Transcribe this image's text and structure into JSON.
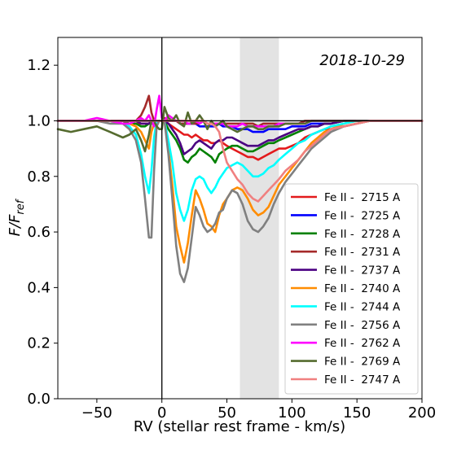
{
  "chart_data": {
    "type": "line",
    "annotation": "2018-10-29",
    "xlabel": "RV (stellar rest frame - km/s)",
    "ylabel_main": "F/F",
    "ylabel_sub": "ref",
    "xlim": [
      -80,
      200
    ],
    "ylim": [
      0,
      1.3
    ],
    "xticks": [
      -50,
      0,
      50,
      100,
      150,
      200
    ],
    "yticks": [
      0.0,
      0.2,
      0.4,
      0.6,
      0.8,
      1.0,
      1.2
    ],
    "shaded_region": [
      60,
      90
    ],
    "shaded_color": "#e3e3e3",
    "hline_y": 1.0,
    "vline_x": 0,
    "legend_position": "lower right",
    "x": [
      -80,
      -70,
      -60,
      -50,
      -40,
      -30,
      -25,
      -20,
      -16,
      -13,
      -10,
      -8,
      -6,
      -4,
      -2,
      0,
      2,
      5,
      8,
      11,
      14,
      17,
      20,
      23,
      26,
      29,
      32,
      35,
      38,
      41,
      44,
      47,
      50,
      54,
      58,
      62,
      66,
      70,
      74,
      78,
      82,
      86,
      90,
      95,
      100,
      105,
      110,
      115,
      120,
      125,
      130,
      140,
      150,
      160,
      170,
      180,
      190,
      200
    ],
    "series": [
      {
        "name": "Fe II -  2715 A",
        "color": "#e31a1c",
        "values": [
          1.0,
          1.0,
          1.0,
          1.0,
          1.0,
          1.0,
          0.99,
          0.99,
          0.99,
          0.99,
          0.99,
          1.0,
          1.0,
          0.99,
          1.0,
          1.0,
          1.0,
          0.99,
          0.98,
          0.97,
          0.96,
          0.95,
          0.95,
          0.94,
          0.95,
          0.94,
          0.93,
          0.93,
          0.92,
          0.92,
          0.93,
          0.92,
          0.91,
          0.9,
          0.89,
          0.88,
          0.87,
          0.87,
          0.86,
          0.87,
          0.88,
          0.89,
          0.9,
          0.9,
          0.91,
          0.92,
          0.94,
          0.95,
          0.96,
          0.97,
          0.97,
          0.98,
          0.99,
          1.0,
          1.0,
          1.0,
          1.0,
          1.0
        ]
      },
      {
        "name": "Fe II -  2725 A",
        "color": "#0000ff",
        "values": [
          1.0,
          1.0,
          1.0,
          1.0,
          1.0,
          1.0,
          1.0,
          1.0,
          1.0,
          1.0,
          1.0,
          1.0,
          1.0,
          1.0,
          1.0,
          1.0,
          1.0,
          1.0,
          1.0,
          1.0,
          0.99,
          0.99,
          0.99,
          0.99,
          0.99,
          0.98,
          0.98,
          0.98,
          0.98,
          0.98,
          0.99,
          0.98,
          0.98,
          0.98,
          0.97,
          0.97,
          0.97,
          0.96,
          0.96,
          0.96,
          0.97,
          0.97,
          0.97,
          0.97,
          0.98,
          0.98,
          0.98,
          0.99,
          0.99,
          0.99,
          0.99,
          1.0,
          1.0,
          1.0,
          1.0,
          1.0,
          1.0,
          1.0
        ]
      },
      {
        "name": "Fe II -  2728 A",
        "color": "#008000",
        "values": [
          1.0,
          1.0,
          1.0,
          1.0,
          1.0,
          1.0,
          0.99,
          0.99,
          0.98,
          0.98,
          0.99,
          0.99,
          0.99,
          0.99,
          1.0,
          1.0,
          1.0,
          0.97,
          0.95,
          0.93,
          0.9,
          0.86,
          0.85,
          0.87,
          0.88,
          0.9,
          0.89,
          0.88,
          0.87,
          0.85,
          0.88,
          0.89,
          0.9,
          0.91,
          0.91,
          0.9,
          0.89,
          0.89,
          0.9,
          0.91,
          0.92,
          0.92,
          0.93,
          0.94,
          0.95,
          0.96,
          0.97,
          0.98,
          0.98,
          0.99,
          0.99,
          1.0,
          1.0,
          1.0,
          1.0,
          1.0,
          1.0,
          1.0
        ]
      },
      {
        "name": "Fe II -  2731 A",
        "color": "#a52a2a",
        "values": [
          1.0,
          1.0,
          1.0,
          1.0,
          1.0,
          1.0,
          1.0,
          1.0,
          1.02,
          1.05,
          1.09,
          1.03,
          1.0,
          1.0,
          1.0,
          1.0,
          1.01,
          1.0,
          1.0,
          1.0,
          0.99,
          0.99,
          0.99,
          0.99,
          0.99,
          0.99,
          1.0,
          0.99,
          0.99,
          0.99,
          0.99,
          0.99,
          0.99,
          0.99,
          0.99,
          0.99,
          0.99,
          0.99,
          0.98,
          0.99,
          0.99,
          0.99,
          0.99,
          0.99,
          0.99,
          0.99,
          1.0,
          1.0,
          1.0,
          1.0,
          1.0,
          1.0,
          1.0,
          1.0,
          1.0,
          1.0,
          1.0,
          1.0
        ]
      },
      {
        "name": "Fe II -  2737 A",
        "color": "#4b0082",
        "values": [
          1.0,
          1.0,
          1.0,
          1.0,
          1.0,
          1.0,
          1.0,
          1.0,
          0.99,
          0.99,
          0.99,
          1.0,
          1.0,
          1.0,
          1.0,
          1.0,
          1.0,
          0.99,
          0.97,
          0.95,
          0.92,
          0.88,
          0.89,
          0.9,
          0.92,
          0.93,
          0.92,
          0.91,
          0.9,
          0.92,
          0.93,
          0.93,
          0.94,
          0.94,
          0.93,
          0.92,
          0.91,
          0.91,
          0.91,
          0.92,
          0.93,
          0.93,
          0.94,
          0.95,
          0.96,
          0.97,
          0.97,
          0.98,
          0.98,
          0.99,
          0.99,
          1.0,
          1.0,
          1.0,
          1.0,
          1.0,
          1.0,
          1.0
        ]
      },
      {
        "name": "Fe II -  2740 A",
        "color": "#ff8c00",
        "values": [
          1.0,
          1.0,
          1.0,
          1.0,
          1.0,
          0.99,
          0.99,
          0.98,
          0.96,
          0.93,
          0.9,
          0.96,
          0.99,
          1.0,
          1.0,
          1.0,
          1.0,
          0.9,
          0.77,
          0.62,
          0.55,
          0.49,
          0.56,
          0.66,
          0.75,
          0.72,
          0.68,
          0.63,
          0.62,
          0.6,
          0.66,
          0.7,
          0.72,
          0.75,
          0.76,
          0.75,
          0.72,
          0.68,
          0.66,
          0.67,
          0.69,
          0.73,
          0.77,
          0.8,
          0.83,
          0.86,
          0.89,
          0.92,
          0.94,
          0.96,
          0.97,
          0.99,
          1.0,
          1.0,
          1.0,
          1.0,
          1.0,
          1.0
        ]
      },
      {
        "name": "Fe II -  2744 A",
        "color": "#00ffff",
        "values": [
          1.0,
          1.0,
          1.0,
          1.0,
          1.0,
          0.99,
          0.98,
          0.95,
          0.88,
          0.8,
          0.74,
          0.82,
          0.94,
          1.0,
          1.0,
          1.0,
          1.0,
          0.93,
          0.85,
          0.74,
          0.68,
          0.64,
          0.68,
          0.75,
          0.79,
          0.8,
          0.79,
          0.76,
          0.74,
          0.76,
          0.79,
          0.81,
          0.83,
          0.84,
          0.85,
          0.84,
          0.82,
          0.8,
          0.8,
          0.81,
          0.83,
          0.84,
          0.86,
          0.88,
          0.9,
          0.92,
          0.93,
          0.95,
          0.96,
          0.97,
          0.98,
          0.99,
          1.0,
          1.0,
          1.0,
          1.0,
          1.0,
          1.0
        ]
      },
      {
        "name": "Fe II -  2756 A",
        "color": "#808080",
        "values": [
          1.0,
          1.0,
          1.0,
          1.0,
          0.99,
          0.99,
          0.97,
          0.93,
          0.85,
          0.72,
          0.58,
          0.58,
          0.82,
          0.98,
          1.0,
          1.0,
          1.0,
          0.88,
          0.72,
          0.55,
          0.45,
          0.42,
          0.47,
          0.58,
          0.69,
          0.66,
          0.62,
          0.6,
          0.61,
          0.63,
          0.67,
          0.68,
          0.72,
          0.75,
          0.74,
          0.7,
          0.64,
          0.61,
          0.6,
          0.62,
          0.65,
          0.7,
          0.74,
          0.78,
          0.81,
          0.84,
          0.87,
          0.9,
          0.92,
          0.94,
          0.96,
          0.98,
          0.99,
          1.0,
          1.0,
          1.0,
          1.0,
          1.0
        ]
      },
      {
        "name": "Fe II -  2762 A",
        "color": "#ff00ff",
        "values": [
          1.0,
          1.0,
          1.0,
          1.01,
          1.0,
          0.99,
          0.99,
          1.0,
          1.01,
          1.0,
          1.02,
          1.0,
          0.98,
          1.04,
          1.09,
          1.01,
          1.0,
          1.02,
          1.01,
          1.0,
          1.0,
          1.0,
          0.99,
          0.99,
          1.0,
          0.99,
          1.0,
          0.99,
          0.99,
          0.99,
          0.99,
          0.99,
          0.98,
          0.98,
          0.98,
          0.99,
          0.98,
          0.98,
          0.98,
          0.98,
          0.98,
          0.98,
          0.99,
          0.99,
          0.99,
          0.99,
          0.99,
          1.0,
          1.0,
          1.0,
          1.0,
          1.0,
          1.0,
          1.0,
          1.0,
          1.0,
          1.0,
          1.0
        ]
      },
      {
        "name": "Fe II -  2769 A",
        "color": "#556b2f",
        "values": [
          0.97,
          0.96,
          0.97,
          0.98,
          0.96,
          0.94,
          0.95,
          0.97,
          0.93,
          0.89,
          0.95,
          1.0,
          1.0,
          0.98,
          0.97,
          0.97,
          1.05,
          1.01,
          1.0,
          1.02,
          0.99,
          0.98,
          1.03,
          0.99,
          1.0,
          1.02,
          1.0,
          0.97,
          1.0,
          0.98,
          0.99,
          1.0,
          0.98,
          0.97,
          0.96,
          0.97,
          0.98,
          0.98,
          0.97,
          0.97,
          0.98,
          0.98,
          0.98,
          0.99,
          0.99,
          0.99,
          0.99,
          1.0,
          1.0,
          1.0,
          1.0,
          1.0,
          1.0,
          1.0,
          1.0,
          1.0,
          1.0,
          1.0
        ]
      },
      {
        "name": "Fe II -  2747 A",
        "color": "#f08080",
        "values": [
          1.0,
          1.0,
          1.0,
          1.0,
          1.0,
          1.0,
          1.0,
          1.0,
          1.0,
          1.0,
          1.0,
          1.0,
          1.0,
          1.0,
          1.0,
          1.0,
          1.0,
          1.0,
          1.0,
          1.0,
          1.0,
          1.0,
          1.0,
          1.0,
          1.0,
          1.0,
          1.0,
          0.99,
          0.99,
          0.98,
          0.96,
          0.9,
          0.85,
          0.82,
          0.79,
          0.77,
          0.74,
          0.72,
          0.71,
          0.73,
          0.75,
          0.77,
          0.79,
          0.82,
          0.84,
          0.86,
          0.89,
          0.91,
          0.93,
          0.95,
          0.97,
          0.98,
          0.99,
          1.0,
          1.0,
          1.0,
          1.0,
          1.0
        ]
      }
    ]
  }
}
